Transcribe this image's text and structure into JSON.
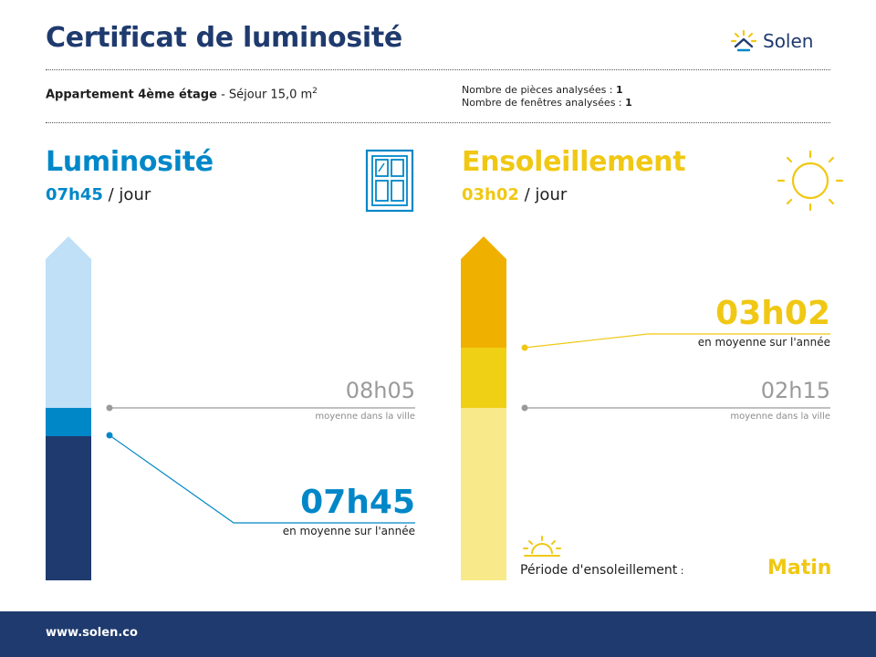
{
  "header": {
    "title": "Certificat de luminosité",
    "brand": "Solen"
  },
  "info": {
    "apartment": "Appartement 4ème étage",
    "room": " - Séjour 15,0 m",
    "room_sup": "2",
    "rooms_label": "Nombre de pièces analysées : ",
    "rooms_value": "1",
    "windows_label": "Nombre de fenêtres analysées : ",
    "windows_value": "1"
  },
  "luminosite": {
    "title": "Luminosité",
    "value": "07h45",
    "unit": " / jour",
    "big_value": "07h45",
    "big_caption": "en moyenne sur l'année",
    "city_value": "08h05",
    "city_caption": "moyenne dans la ville",
    "bar": {
      "max_hours": 12,
      "value_hours": 7.75,
      "city_hours": 8.083
    },
    "colors": {
      "light": "#bfe0f7",
      "accent": "#0087c8",
      "dark": "#1f3a6e"
    }
  },
  "ensoleillement": {
    "title": "Ensoleillement",
    "value": "03h02",
    "unit": " / jour",
    "big_value": "03h02",
    "big_caption": "en moyenne sur l'année",
    "city_value": "02h15",
    "city_caption": "moyenne dans la ville",
    "bar": {
      "max_hours": 4.5,
      "value_hours": 3.033,
      "city_hours": 2.25
    },
    "colors": {
      "top": "#f0b000",
      "mid": "#f0d014",
      "low": "#f8e98a"
    },
    "periode_label": "Période d'ensoleillement",
    "periode_colon": " :",
    "periode_value": "Matin"
  },
  "footer": {
    "url": "www.solen.co"
  },
  "icons": [
    "solen-logo-icon",
    "window-icon",
    "sun-icon",
    "sunrise-icon"
  ]
}
